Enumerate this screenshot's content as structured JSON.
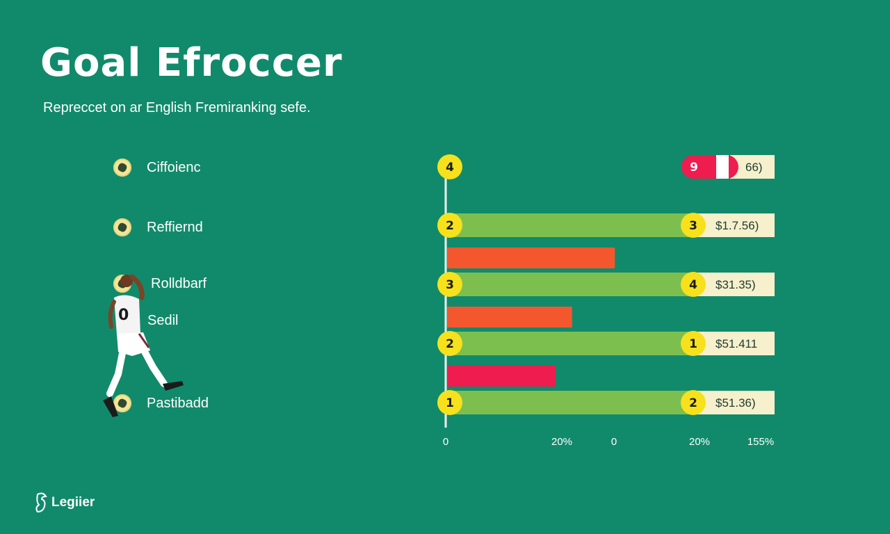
{
  "header": {
    "title": "Goal Efroccer",
    "subtitle": "Repreccet on ar English Fremiranking sefe."
  },
  "labels": [
    {
      "text": "Ciffoienc",
      "icon": "soccer-ball-icon"
    },
    {
      "text": "Reffiernd",
      "icon": "soccer-ball-icon"
    },
    {
      "text": "Rolldbarf",
      "icon": "soccer-ball-icon"
    },
    {
      "text": "Sedil",
      "icon": ""
    },
    {
      "text": "Pastibadd",
      "icon": "soccer-ball-icon"
    }
  ],
  "logo": {
    "text": "Legiier",
    "icon": "lion-crest-icon"
  },
  "colors": {
    "background": "#118a6b",
    "green_bar": "#7dbf4f",
    "track": "#f6f0cc",
    "orange_bar": "#f4572e",
    "pink_bar": "#ee1c4f",
    "badge": "#f6e11c"
  },
  "chart_data": {
    "type": "bar",
    "rows": [
      {
        "left_badge": "4",
        "right_badge": "9",
        "right_badge_style": "red",
        "value_label": "66)",
        "green_fill": 0
      },
      {
        "left_badge": "2",
        "right_badge": "3",
        "value_label": "$1.7.56)",
        "green_fill": 1
      },
      {
        "left_badge": "3",
        "right_badge": "4",
        "value_label": "$31.35)",
        "green_fill": 1
      },
      {
        "left_badge": "2",
        "right_badge": "1",
        "value_label": "$51.411",
        "green_fill": 1
      },
      {
        "left_badge": "1",
        "right_badge": "2",
        "value_label": "$51.36)",
        "green_fill": 1
      }
    ],
    "secondary_bars": [
      {
        "color": "orange",
        "fraction": 0.51
      },
      {
        "color": "orange",
        "fraction": 0.38
      },
      {
        "color": "pink",
        "fraction": 0.33
      }
    ],
    "x_ticks": [
      "0",
      "20%",
      "0",
      "20%",
      "155%"
    ]
  }
}
